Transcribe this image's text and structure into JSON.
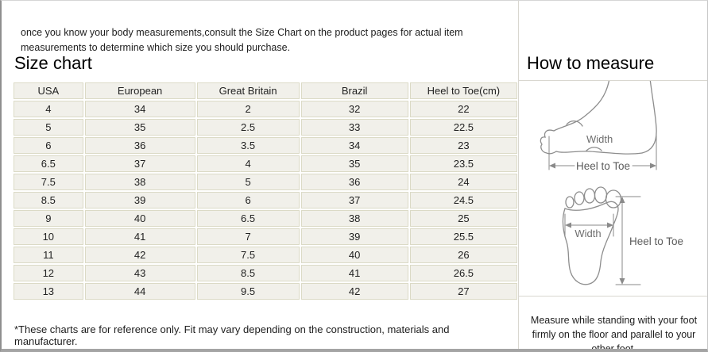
{
  "intro_text": "once you know your body measurements,consult the Size Chart on the product pages for actual item measurements to determine which size you should purchase.",
  "size_chart": {
    "title": "Size chart",
    "columns": [
      "USA",
      "European",
      "Great Britain",
      "Brazil",
      "Heel to Toe(cm)"
    ],
    "rows": [
      [
        "4",
        "34",
        "2",
        "32",
        "22"
      ],
      [
        "5",
        "35",
        "2.5",
        "33",
        "22.5"
      ],
      [
        "6",
        "36",
        "3.5",
        "34",
        "23"
      ],
      [
        "6.5",
        "37",
        "4",
        "35",
        "23.5"
      ],
      [
        "7.5",
        "38",
        "5",
        "36",
        "24"
      ],
      [
        "8.5",
        "39",
        "6",
        "37",
        "24.5"
      ],
      [
        "9",
        "40",
        "6.5",
        "38",
        "25"
      ],
      [
        "10",
        "41",
        "7",
        "39",
        "25.5"
      ],
      [
        "11",
        "42",
        "7.5",
        "40",
        "26"
      ],
      [
        "12",
        "43",
        "8.5",
        "41",
        "26.5"
      ],
      [
        "13",
        "44",
        "9.5",
        "42",
        "27"
      ]
    ],
    "footnote": "*These charts are for reference only. Fit may vary depending on the construction, materials and manufacturer."
  },
  "how_to_measure": {
    "title": "How to measure",
    "side_view": {
      "width_label": "Width",
      "heel_label": "Heel to Toe"
    },
    "sole_view": {
      "width_label": "Width",
      "heel_label": "Heel to Toe"
    },
    "note": "Measure while standing with your foot firmly on the floor and parallel to your other foot."
  },
  "colors": {
    "cell_background": "#f1f0ea",
    "cell_border": "#dbdac6",
    "section_divider": "#d9d7d0",
    "diagram_stroke": "#8d8d8d",
    "frame_gray": "#a4a4a4"
  }
}
